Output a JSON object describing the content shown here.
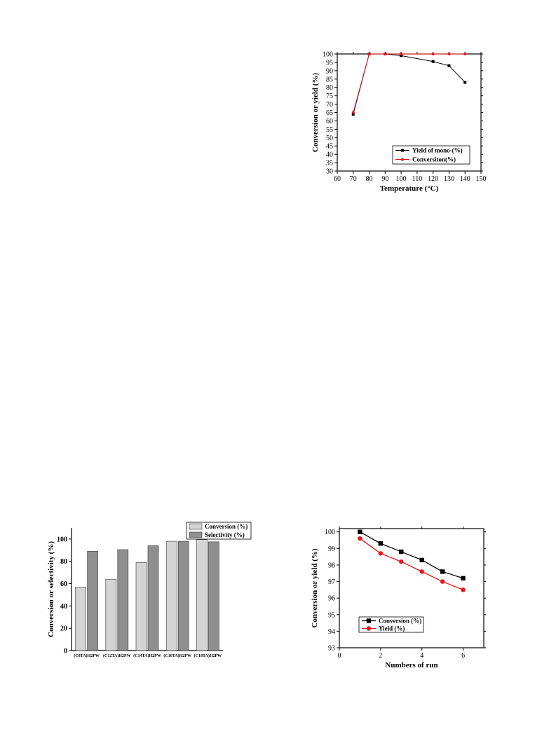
{
  "chart_data": [
    {
      "id": "temp",
      "type": "line",
      "xlabel": "Temperature (°C)",
      "ylabel": "Conversion or yield (%)",
      "xlim": [
        60,
        150
      ],
      "ylim": [
        30,
        100
      ],
      "xticks": [
        60,
        70,
        80,
        90,
        100,
        110,
        120,
        130,
        140,
        150
      ],
      "yticks": [
        30,
        35,
        40,
        45,
        50,
        55,
        60,
        65,
        70,
        75,
        80,
        85,
        90,
        95,
        100
      ],
      "legend_position": "bottom-right",
      "series": [
        {
          "name": "Yield of mono-(%)",
          "color": "#000000",
          "marker": "square",
          "x": [
            70,
            80,
            90,
            100,
            120,
            130,
            140
          ],
          "y": [
            64,
            100,
            100,
            99,
            95.5,
            93,
            83
          ]
        },
        {
          "name": "Conversiton(%)",
          "color": "#e8141c",
          "marker": "circle",
          "x": [
            70,
            80,
            90,
            100,
            120,
            130,
            140
          ],
          "y": [
            65,
            100,
            100,
            100,
            100,
            100,
            100
          ]
        }
      ]
    },
    {
      "id": "catalyst",
      "type": "bar",
      "ylabel": "Conversion or selectivity (%)",
      "ylim": [
        0,
        110
      ],
      "yticks": [
        0,
        20,
        40,
        60,
        80,
        100
      ],
      "legend_position": "top-right",
      "categories": [
        "(C8TA)H2PW",
        "(C12TA)H2PW",
        "(C14TA)H2PW",
        "(C16TA)H2PW",
        "(C18TA)H2PW"
      ],
      "series": [
        {
          "name": "Conversion (%)",
          "color": "#d4d4d4",
          "values": [
            57,
            64,
            79,
            98,
            99.5
          ]
        },
        {
          "name": "Selectivity (%)",
          "color": "#8f8f8f",
          "values": [
            89,
            90.5,
            94,
            98,
            97.5
          ]
        }
      ]
    },
    {
      "id": "reuse",
      "type": "line",
      "xlabel": "Numbers of run",
      "ylabel": "Conversion or yield (%)",
      "xlim": [
        0,
        7
      ],
      "ylim": [
        93,
        100.2
      ],
      "xticks": [
        0,
        2,
        4,
        6
      ],
      "yticks": [
        93,
        94,
        95,
        96,
        97,
        98,
        99,
        100
      ],
      "legend_position": "bottom-left",
      "series": [
        {
          "name": "Conversion (%)",
          "color": "#000000",
          "marker": "square",
          "x": [
            1,
            2,
            3,
            4,
            5,
            6
          ],
          "y": [
            100,
            99.3,
            98.8,
            98.3,
            97.6,
            97.2
          ]
        },
        {
          "name": "Yield (%)",
          "color": "#e8141c",
          "marker": "circle",
          "x": [
            1,
            2,
            3,
            4,
            5,
            6
          ],
          "y": [
            99.6,
            98.7,
            98.2,
            97.6,
            97,
            96.5
          ]
        }
      ]
    }
  ]
}
